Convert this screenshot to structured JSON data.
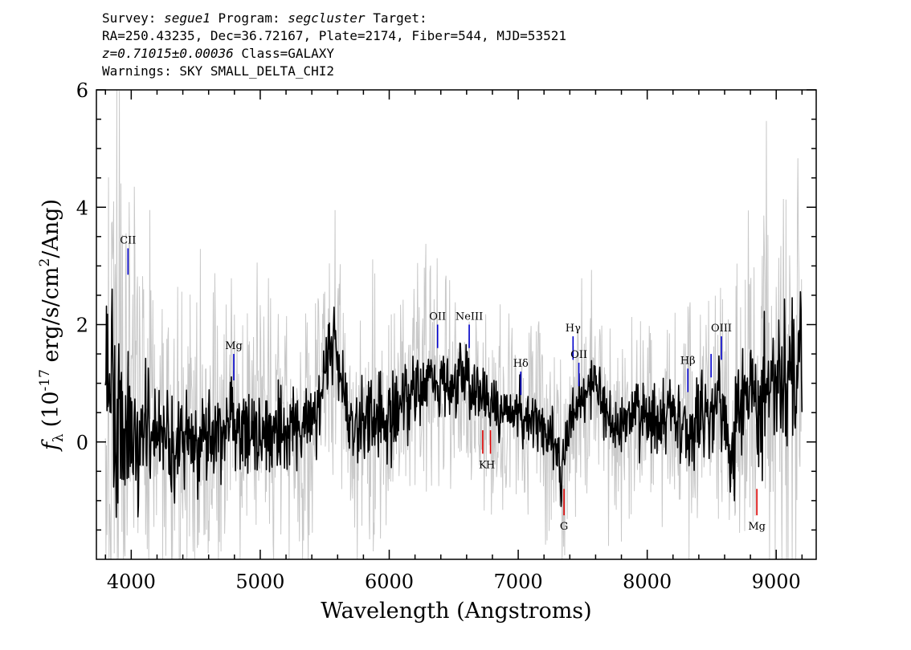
{
  "header": {
    "survey_key": "Survey:",
    "survey": "segue1",
    "program_key": "Program:",
    "program": "segcluster",
    "target_key": "Target:",
    "line2": "RA=250.43235, Dec=36.72167, Plate=2174, Fiber=544, MJD=53521",
    "redshift": "z=0.71015±0.00036",
    "class": "Class=GALAXY",
    "warnings": "Warnings: SKY SMALL_DELTA_CHI2"
  },
  "chart_data": {
    "type": "line",
    "title": "",
    "xlabel": "Wavelength (Angstroms)",
    "ylabel_parts": {
      "symbol": "f",
      "subscript": "λ",
      "pre": "(10",
      "exp1": "-17",
      "mid": " erg/s/cm",
      "exp2": "2",
      "post": "/Ang)"
    },
    "xlim": [
      3730,
      9310
    ],
    "ylim": [
      -2,
      6
    ],
    "xticks": [
      4000,
      5000,
      6000,
      7000,
      8000,
      9000
    ],
    "yticks": [
      0,
      2,
      4,
      6
    ],
    "grid": false,
    "colors": {
      "flux": "#000000",
      "error": "#c8c8c8",
      "emission": "#0000cc",
      "absorption": "#dd0000"
    },
    "series": [
      {
        "style": "black-line",
        "x": [
          3800,
          3850,
          3900,
          3950,
          4000,
          4100,
          4200,
          4300,
          4400,
          4500,
          4600,
          4700,
          4800,
          4900,
          5000,
          5200,
          5400,
          5577,
          5700,
          5900,
          6100,
          6250,
          6400,
          6500,
          6580,
          6650,
          6750,
          6800,
          6900,
          7000,
          7100,
          7200,
          7300,
          7340,
          7400,
          7500,
          7600,
          7700,
          7800,
          7900,
          8000,
          8100,
          8200,
          8300,
          8340,
          8400,
          8500,
          8600,
          8650,
          8700,
          8800,
          8870,
          8900,
          9000,
          9100,
          9200
        ],
        "y": [
          1.3,
          0.9,
          0.4,
          0.6,
          0.1,
          0.0,
          0.1,
          0.0,
          -0.1,
          0.0,
          0.05,
          0.2,
          0.3,
          0.25,
          0.2,
          0.2,
          0.3,
          1.8,
          0.3,
          0.35,
          0.7,
          0.9,
          1.0,
          0.9,
          1.3,
          0.8,
          0.7,
          0.6,
          0.45,
          0.45,
          0.4,
          0.2,
          0.0,
          -0.6,
          0.3,
          0.8,
          1.0,
          0.45,
          0.35,
          0.4,
          0.35,
          0.35,
          0.5,
          0.35,
          0.0,
          0.5,
          0.6,
          0.55,
          -0.5,
          0.7,
          0.9,
          0.3,
          0.8,
          0.9,
          1.1,
          1.3
        ]
      },
      {
        "style": "grey-error-band",
        "x": [
          3800,
          3900,
          4000,
          4200,
          4400,
          4600,
          4800,
          5000,
          5200,
          5400,
          5600,
          5800,
          6000,
          6200,
          6400,
          6600,
          6800,
          7000,
          7200,
          7400,
          7600,
          7800,
          8000,
          8200,
          8400,
          8600,
          8800,
          9000,
          9200
        ],
        "y": [
          4.5,
          3.5,
          2.9,
          2.3,
          2.1,
          1.9,
          1.8,
          1.7,
          1.6,
          1.6,
          1.6,
          1.6,
          1.6,
          1.5,
          1.4,
          1.3,
          1.2,
          1.2,
          1.2,
          1.2,
          1.2,
          1.3,
          1.3,
          1.4,
          1.6,
          1.8,
          2.2,
          2.6,
          2.9
        ]
      }
    ],
    "annotations": [
      {
        "label": "CII",
        "x": 3975,
        "y_top": 3.3,
        "y_bottom": 2.85,
        "color": "emission",
        "label_side": "above"
      },
      {
        "label": "Mg",
        "x": 4795,
        "y_top": 1.5,
        "y_bottom": 1.05,
        "color": "emission",
        "label_side": "above"
      },
      {
        "label": "OII",
        "x": 6375,
        "y_top": 2.0,
        "y_bottom": 1.6,
        "color": "emission",
        "label_side": "above"
      },
      {
        "label": "NeIII",
        "x": 6620,
        "y_top": 2.0,
        "y_bottom": 1.6,
        "color": "emission",
        "label_side": "above"
      },
      {
        "label": "Hδ",
        "x": 7020,
        "y_top": 1.2,
        "y_bottom": 0.8,
        "color": "emission",
        "label_side": "above"
      },
      {
        "label": "Hγ",
        "x": 7425,
        "y_top": 1.8,
        "y_bottom": 1.4,
        "color": "emission",
        "label_side": "above"
      },
      {
        "label": "OII",
        "x": 7470,
        "y_top": 1.35,
        "y_bottom": 0.95,
        "color": "emission",
        "label_side": "above"
      },
      {
        "label": "Hβ",
        "x": 8315,
        "y_top": 1.25,
        "y_bottom": 0.85,
        "color": "emission",
        "label_side": "above"
      },
      {
        "label": "",
        "x": 8495,
        "y_top": 1.5,
        "y_bottom": 1.1,
        "color": "emission",
        "label_side": "above"
      },
      {
        "label": "OIII",
        "x": 8575,
        "y_top": 1.8,
        "y_bottom": 1.4,
        "color": "emission",
        "label_side": "above"
      },
      {
        "label": "K",
        "x": 6725,
        "y_top": 0.2,
        "y_bottom": -0.2,
        "color": "absorption",
        "label_side": "below"
      },
      {
        "label": "H",
        "x": 6785,
        "y_top": 0.2,
        "y_bottom": -0.2,
        "color": "absorption",
        "label_side": "below"
      },
      {
        "label": "G",
        "x": 7355,
        "y_top": -0.8,
        "y_bottom": -1.25,
        "color": "absorption",
        "label_side": "below"
      },
      {
        "label": "Mg",
        "x": 8850,
        "y_top": -0.8,
        "y_bottom": -1.25,
        "color": "absorption",
        "label_side": "below"
      }
    ]
  }
}
